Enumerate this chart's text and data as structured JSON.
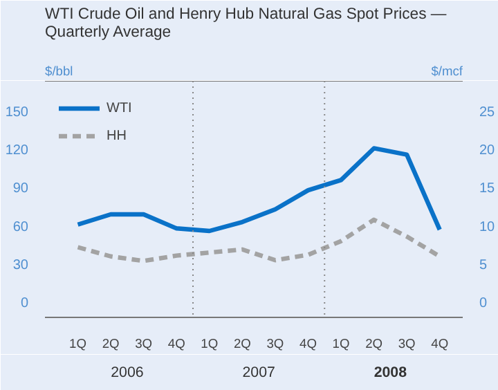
{
  "chart_data": {
    "type": "line",
    "title": "WTI Crude Oil and Henry Hub Natural Gas Spot Prices — Quarterly Average",
    "ylabel": "$/bbl",
    "y2label": "$/mcf",
    "categories": [
      "1Q",
      "2Q",
      "3Q",
      "4Q",
      "1Q",
      "2Q",
      "3Q",
      "4Q",
      "1Q",
      "2Q",
      "3Q",
      "4Q"
    ],
    "annotations": [
      "2006",
      "2007",
      "2008"
    ],
    "series": [
      {
        "name": "WTI",
        "color": "#0a72c8",
        "line_style": "solid",
        "values": [
          61,
          69,
          69,
          58,
          56,
          63,
          73,
          88,
          96,
          121,
          116,
          57
        ]
      },
      {
        "name": "HH",
        "color": "#a3a3a3",
        "line_style": "dashed",
        "axis": "y2",
        "values": [
          7.2,
          6.0,
          5.4,
          6.1,
          6.5,
          6.9,
          5.5,
          6.2,
          8.0,
          10.8,
          8.6,
          6.0
        ]
      }
    ],
    "ylim": [
      -12,
      174
    ],
    "yticks": [
      0,
      30,
      60,
      90,
      120,
      150
    ],
    "y2lim": [
      -2,
      29
    ],
    "y2ticks": [
      0,
      5,
      10,
      15,
      20,
      25
    ],
    "grid": false,
    "legend": "top left",
    "marker": "none"
  }
}
